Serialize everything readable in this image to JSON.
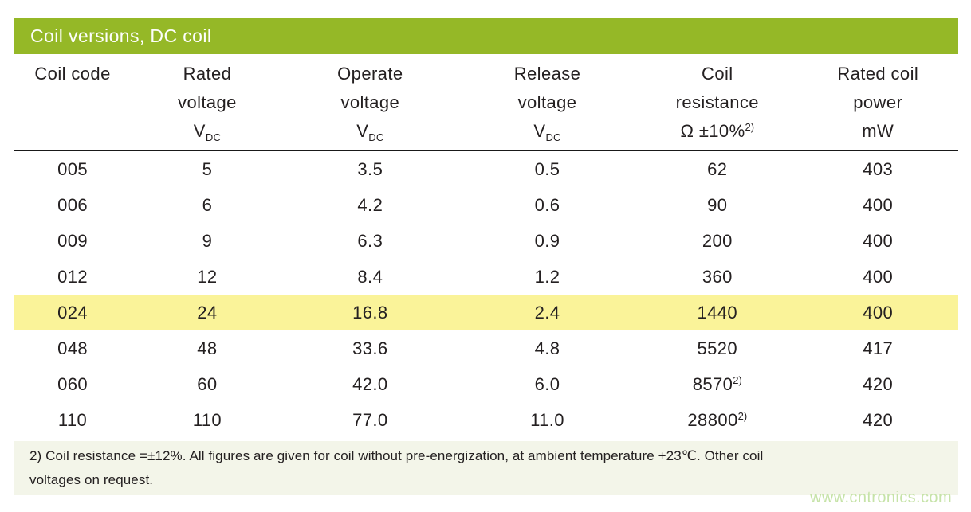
{
  "title_bar": {
    "label": "Coil versions, DC coil"
  },
  "table": {
    "header": [
      {
        "l1": "Coil code",
        "l2": "",
        "l3": "",
        "l3sub": "",
        "l3sup": ""
      },
      {
        "l1": "Rated",
        "l2": "voltage",
        "l3": "V",
        "l3sub": "DC",
        "l3sup": ""
      },
      {
        "l1": "Operate",
        "l2": "voltage",
        "l3": "V",
        "l3sub": "DC",
        "l3sup": ""
      },
      {
        "l1": "Release",
        "l2": "voltage",
        "l3": "V",
        "l3sub": "DC",
        "l3sup": ""
      },
      {
        "l1": "Coil",
        "l2": "resistance",
        "l3": "Ω ±10%",
        "l3sub": "",
        "l3sup": "2)"
      },
      {
        "l1": "Rated coil",
        "l2": "power",
        "l3": "mW",
        "l3sub": "",
        "l3sup": ""
      }
    ],
    "rows": [
      {
        "code": "005",
        "rated": "5",
        "operate": "3.5",
        "release": "0.5",
        "resistance": "62",
        "resistance_sup": "",
        "power": "403",
        "highlighted": false
      },
      {
        "code": "006",
        "rated": "6",
        "operate": "4.2",
        "release": "0.6",
        "resistance": "90",
        "resistance_sup": "",
        "power": "400",
        "highlighted": false
      },
      {
        "code": "009",
        "rated": "9",
        "operate": "6.3",
        "release": "0.9",
        "resistance": "200",
        "resistance_sup": "",
        "power": "400",
        "highlighted": false
      },
      {
        "code": "012",
        "rated": "12",
        "operate": "8.4",
        "release": "1.2",
        "resistance": "360",
        "resistance_sup": "",
        "power": "400",
        "highlighted": false
      },
      {
        "code": "024",
        "rated": "24",
        "operate": "16.8",
        "release": "2.4",
        "resistance": "1440",
        "resistance_sup": "",
        "power": "400",
        "highlighted": true
      },
      {
        "code": "048",
        "rated": "48",
        "operate": "33.6",
        "release": "4.8",
        "resistance": "5520",
        "resistance_sup": "",
        "power": "417",
        "highlighted": false
      },
      {
        "code": "060",
        "rated": "60",
        "operate": "42.0",
        "release": "6.0",
        "resistance": "8570",
        "resistance_sup": "2)",
        "power": "420",
        "highlighted": false
      },
      {
        "code": "110",
        "rated": "110",
        "operate": "77.0",
        "release": "11.0",
        "resistance": "28800",
        "resistance_sup": "2)",
        "power": "420",
        "highlighted": false
      }
    ]
  },
  "footnote": {
    "line1": "2) Coil resistance =±12%. All figures are given for coil without pre-energization, at ambient temperature +23℃. Other coil",
    "line2": "voltages on request."
  },
  "watermark": "www.cntronics.com",
  "colors": {
    "title_bar_green": "#95b827",
    "title_text": "#fdfefb",
    "row_highlight_yellow": "#faf399",
    "footnote_background": "#f3f5e9",
    "watermark_green": "#c6e3a8",
    "header_rule": "#191919",
    "body_text": "#242021"
  }
}
